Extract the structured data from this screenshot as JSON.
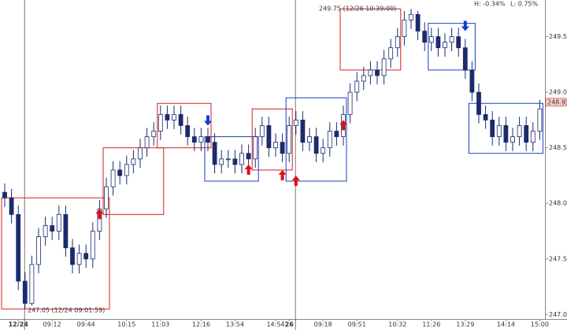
{
  "chart_data": {
    "type": "candlestick",
    "categories": [
      null,
      null,
      "12/24",
      null,
      null,
      null,
      null,
      "09:12",
      null,
      null,
      null,
      null,
      "09:44",
      null,
      null,
      null,
      null,
      null,
      "10:15",
      null,
      null,
      null,
      null,
      "11:03",
      null,
      null,
      null,
      null,
      null,
      "12:16",
      null,
      null,
      null,
      null,
      "13:54",
      null,
      null,
      null,
      null,
      null,
      "14:54",
      null,
      "26",
      null,
      null,
      null,
      null,
      "09:18",
      null,
      null,
      null,
      null,
      "09:51",
      null,
      null,
      null,
      null,
      null,
      "10:32",
      null,
      null,
      null,
      null,
      "11:26",
      null,
      null,
      null,
      null,
      "13:29",
      null,
      null,
      null,
      null,
      null,
      "14:14",
      null,
      null,
      null,
      null,
      "15:00"
    ],
    "open": [
      248.1,
      248.05,
      247.9,
      247.3,
      247.1,
      247.45,
      247.7,
      247.8,
      247.75,
      247.9,
      247.6,
      247.45,
      247.55,
      247.5,
      247.75,
      247.95,
      248.15,
      248.3,
      248.25,
      248.35,
      248.4,
      248.5,
      248.6,
      248.65,
      248.8,
      248.75,
      248.8,
      248.7,
      248.6,
      248.55,
      248.6,
      248.55,
      248.35,
      248.4,
      248.4,
      248.35,
      248.45,
      248.4,
      248.6,
      248.7,
      248.5,
      248.55,
      248.45,
      248.7,
      248.75,
      248.55,
      248.6,
      248.45,
      248.5,
      248.65,
      248.6,
      248.8,
      249.0,
      249.1,
      249.15,
      249.2,
      249.15,
      249.3,
      249.4,
      249.5,
      249.65,
      249.7,
      249.55,
      249.45,
      249.5,
      249.4,
      249.45,
      249.5,
      249.4,
      249.2,
      249.0,
      248.8,
      248.75,
      248.6,
      248.7,
      248.55,
      248.6,
      248.7,
      248.55,
      248.65
    ],
    "high": [
      248.18,
      248.13,
      247.98,
      247.38,
      247.53,
      247.78,
      247.88,
      247.88,
      247.98,
      247.98,
      247.68,
      247.63,
      247.63,
      247.83,
      248.03,
      248.23,
      248.38,
      248.38,
      248.43,
      248.48,
      248.58,
      248.68,
      248.73,
      248.88,
      248.88,
      248.88,
      248.88,
      248.78,
      248.68,
      248.68,
      248.68,
      248.63,
      248.48,
      248.48,
      248.48,
      248.53,
      248.53,
      248.68,
      248.78,
      248.78,
      248.63,
      248.63,
      248.78,
      248.83,
      248.83,
      248.68,
      248.68,
      248.58,
      248.73,
      248.73,
      248.88,
      249.08,
      249.18,
      249.23,
      249.28,
      249.28,
      249.38,
      249.48,
      249.58,
      249.73,
      249.75,
      249.73,
      249.63,
      249.58,
      249.58,
      249.53,
      249.58,
      249.58,
      249.48,
      249.28,
      249.08,
      248.88,
      248.83,
      248.78,
      248.78,
      248.68,
      248.78,
      248.78,
      248.73,
      248.93
    ],
    "low": [
      247.97,
      247.82,
      247.22,
      247.05,
      247.08,
      247.37,
      247.62,
      247.67,
      247.67,
      247.52,
      247.37,
      247.37,
      247.42,
      247.42,
      247.67,
      247.87,
      248.07,
      248.17,
      248.17,
      248.27,
      248.32,
      248.42,
      248.52,
      248.57,
      248.67,
      248.67,
      248.62,
      248.52,
      248.47,
      248.47,
      248.47,
      248.27,
      248.27,
      248.32,
      248.27,
      248.27,
      248.32,
      248.32,
      248.52,
      248.42,
      248.42,
      248.37,
      248.37,
      248.62,
      248.47,
      248.47,
      248.37,
      248.37,
      248.42,
      248.52,
      248.52,
      248.72,
      248.92,
      249.02,
      249.07,
      249.07,
      249.07,
      249.22,
      249.32,
      249.42,
      249.57,
      249.47,
      249.37,
      249.37,
      249.32,
      249.32,
      249.37,
      249.32,
      249.12,
      248.92,
      248.72,
      248.67,
      248.52,
      248.52,
      248.47,
      248.47,
      248.52,
      248.47,
      248.47,
      248.57
    ],
    "close": [
      248.05,
      247.9,
      247.3,
      247.1,
      247.45,
      247.7,
      247.8,
      247.75,
      247.9,
      247.6,
      247.45,
      247.55,
      247.5,
      247.75,
      247.95,
      248.15,
      248.3,
      248.25,
      248.35,
      248.4,
      248.5,
      248.6,
      248.65,
      248.8,
      248.75,
      248.8,
      248.7,
      248.6,
      248.55,
      248.6,
      248.55,
      248.35,
      248.4,
      248.4,
      248.35,
      248.45,
      248.4,
      248.6,
      248.7,
      248.5,
      248.55,
      248.45,
      248.7,
      248.75,
      248.55,
      248.6,
      248.45,
      248.5,
      248.65,
      248.6,
      248.8,
      249.0,
      249.1,
      249.15,
      249.2,
      249.15,
      249.3,
      249.4,
      249.5,
      249.65,
      249.7,
      249.55,
      249.45,
      249.5,
      249.4,
      249.45,
      249.5,
      249.4,
      249.2,
      249.0,
      248.8,
      248.75,
      248.6,
      248.7,
      248.55,
      248.6,
      248.7,
      248.55,
      248.65,
      248.85
    ],
    "up_color": "#ffffff",
    "down_color": "#1c2a6e",
    "wick_color": "#1c2a6e",
    "ylim": [
      246.96,
      249.83
    ],
    "yticks": [
      {
        "value": 247.0,
        "label": "247.00"
      },
      {
        "value": 247.5,
        "label": "247.50"
      },
      {
        "value": 248.0,
        "label": "248.00"
      },
      {
        "value": 248.5,
        "label": "248.50"
      },
      {
        "value": 249.0,
        "label": "249.00"
      },
      {
        "value": 249.5,
        "label": "249.50"
      }
    ],
    "day_breaks": [
      2,
      42
    ],
    "boxes": [
      {
        "start": 0,
        "end": 15,
        "low": 247.05,
        "high": 248.05,
        "color": "#d62020"
      },
      {
        "start": 15,
        "end": 23,
        "low": 247.9,
        "high": 248.5,
        "color": "#d62020"
      },
      {
        "start": 23,
        "end": 30,
        "low": 248.5,
        "high": 248.9,
        "color": "#d62020"
      },
      {
        "start": 30,
        "end": 37,
        "low": 248.2,
        "high": 248.6,
        "color": "#1a3fc4"
      },
      {
        "start": 37,
        "end": 42,
        "low": 248.3,
        "high": 248.85,
        "color": "#d62020"
      },
      {
        "start": 42,
        "end": 50,
        "low": 248.2,
        "high": 248.95,
        "color": "#1a3fc4"
      },
      {
        "start": 50,
        "end": 58,
        "low": 249.2,
        "high": 249.75,
        "color": "#d62020"
      },
      {
        "start": 63,
        "end": 69,
        "low": 249.2,
        "high": 249.62,
        "color": "#1a3fc4"
      },
      {
        "start": 69,
        "end": 79,
        "low": 248.45,
        "high": 248.9,
        "color": "#1a3fc4"
      }
    ],
    "signals": [
      {
        "index": 14,
        "price": 247.95,
        "direction": "up"
      },
      {
        "index": 30,
        "price": 248.7,
        "direction": "down"
      },
      {
        "index": 36,
        "price": 248.35,
        "direction": "up"
      },
      {
        "index": 41,
        "price": 248.3,
        "direction": "up"
      },
      {
        "index": 43,
        "price": 248.25,
        "direction": "up"
      },
      {
        "index": 50,
        "price": 248.75,
        "direction": "up"
      },
      {
        "index": 68,
        "price": 249.55,
        "direction": "down"
      }
    ],
    "signal_up_color": "#e01010",
    "signal_down_color": "#1040d0",
    "last_price": 248.91,
    "annotations": [
      "249.75 (12/26 10:39:00)",
      "247.05 (12/24 09:01:59)"
    ],
    "stats": [
      "H: -0.34%",
      "L: 0.75%"
    ]
  }
}
